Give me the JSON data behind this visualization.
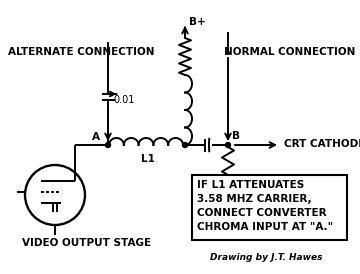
{
  "bg_color": "#f0f0f0",
  "line_color": "#000000",
  "labels": {
    "alt_connection": "ALTERNATE CONNECTION",
    "normal_connection": "NORMAL CONNECTION",
    "bplus": "B+",
    "point_a": "A",
    "point_b": "B",
    "crt_cathode": "CRT CATHODE",
    "l1": "L1",
    "video_output": "VIDEO OUTPUT STAGE",
    "cap_value": "0.01",
    "note_line1": "IF L1 ATTENUATES",
    "note_line2": "3.58 MHZ CARRIER,",
    "note_line3": "CONNECT CONVERTER",
    "note_line4": "CHROMA INPUT AT \"A.\"",
    "drawing_by": "Drawing by J.T. Hawes"
  },
  "figsize": [
    3.6,
    2.74
  ],
  "dpi": 100
}
